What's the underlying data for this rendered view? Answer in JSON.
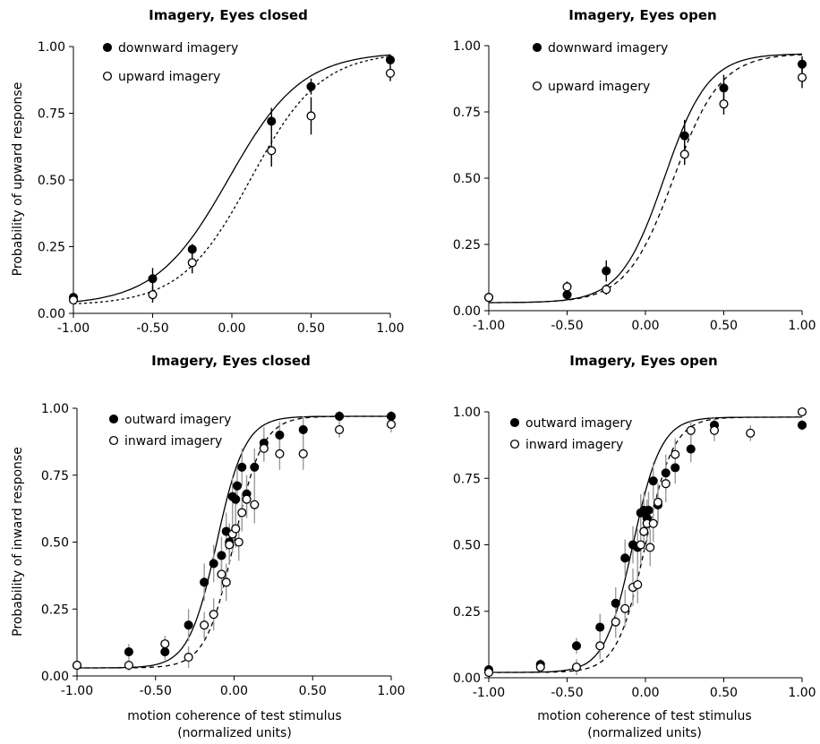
{
  "chart_data": [
    {
      "type": "scatter",
      "title": "Imagery, Eyes closed",
      "ylabel": "Probability of upward response",
      "xlabel": "",
      "xlim": [
        -1,
        1
      ],
      "ylim": [
        0,
        1
      ],
      "xticks": [
        "-1.00",
        "-0.50",
        "0.00",
        "0.50",
        "1.00"
      ],
      "yticks": [
        "0.00",
        "0.25",
        "0.50",
        "0.75",
        "1.00"
      ],
      "legend_position": "top-left",
      "series": [
        {
          "name": "downward imagery",
          "marker": "filled",
          "line": "solid",
          "fit": {
            "mu": -0.02,
            "s": 0.23,
            "lo": 0.03,
            "hi": 0.98
          },
          "points": [
            {
              "x": -1.0,
              "y": 0.06,
              "err": 0.0
            },
            {
              "x": -0.5,
              "y": 0.13,
              "err": 0.04
            },
            {
              "x": -0.25,
              "y": 0.24,
              "err": 0.02
            },
            {
              "x": 0.25,
              "y": 0.72,
              "err": 0.05
            },
            {
              "x": 0.5,
              "y": 0.85,
              "err": 0.03
            },
            {
              "x": 1.0,
              "y": 0.95,
              "err": 0.02
            }
          ]
        },
        {
          "name": "upward imagery",
          "marker": "open",
          "line": "dotted",
          "fit": {
            "mu": 0.12,
            "s": 0.22,
            "lo": 0.03,
            "hi": 0.98
          },
          "points": [
            {
              "x": -1.0,
              "y": 0.05,
              "err": 0.0
            },
            {
              "x": -0.5,
              "y": 0.07,
              "err": 0.03
            },
            {
              "x": -0.25,
              "y": 0.19,
              "err": 0.04
            },
            {
              "x": 0.25,
              "y": 0.61,
              "err": 0.06
            },
            {
              "x": 0.5,
              "y": 0.74,
              "err": 0.07
            },
            {
              "x": 1.0,
              "y": 0.9,
              "err": 0.03
            }
          ]
        }
      ]
    },
    {
      "type": "scatter",
      "title": "Imagery, Eyes open",
      "ylabel": "",
      "xlabel": "",
      "xlim": [
        -1,
        1
      ],
      "ylim": [
        0,
        1
      ],
      "xticks": [
        "-1.00",
        "-0.50",
        "0.00",
        "0.50",
        "1.00"
      ],
      "yticks": [
        "0.00",
        "0.25",
        "0.50",
        "0.75",
        "1.00"
      ],
      "legend_position": "top-left",
      "series": [
        {
          "name": "downward imagery",
          "marker": "filled",
          "line": "solid",
          "fit": {
            "mu": 0.12,
            "s": 0.14,
            "lo": 0.03,
            "hi": 0.97
          },
          "points": [
            {
              "x": -1.0,
              "y": 0.05,
              "err": 0.0
            },
            {
              "x": -0.5,
              "y": 0.06,
              "err": 0.02
            },
            {
              "x": -0.25,
              "y": 0.15,
              "err": 0.04
            },
            {
              "x": 0.25,
              "y": 0.66,
              "err": 0.06
            },
            {
              "x": 0.5,
              "y": 0.84,
              "err": 0.05
            },
            {
              "x": 1.0,
              "y": 0.93,
              "err": 0.03
            }
          ]
        },
        {
          "name": "upward imagery",
          "marker": "open",
          "line": "dashed",
          "fit": {
            "mu": 0.18,
            "s": 0.15,
            "lo": 0.03,
            "hi": 0.97
          },
          "points": [
            {
              "x": -1.0,
              "y": 0.05,
              "err": 0.0
            },
            {
              "x": -0.5,
              "y": 0.09,
              "err": 0.02
            },
            {
              "x": -0.25,
              "y": 0.08,
              "err": 0.02
            },
            {
              "x": 0.25,
              "y": 0.59,
              "err": 0.04
            },
            {
              "x": 0.5,
              "y": 0.78,
              "err": 0.04
            },
            {
              "x": 1.0,
              "y": 0.88,
              "err": 0.04
            }
          ]
        }
      ]
    },
    {
      "type": "scatter",
      "title": "Imagery, Eyes closed",
      "ylabel": "Probability of inward response",
      "xlabel": "motion coherence of test stimulus",
      "xlabel2": "(normalized units)",
      "xlim": [
        -1,
        1
      ],
      "ylim": [
        0,
        1
      ],
      "xticks": [
        "-1.00",
        "-0.50",
        "0.00",
        "0.50",
        "1.00"
      ],
      "yticks": [
        "0.00",
        "0.25",
        "0.50",
        "0.75",
        "1.00"
      ],
      "legend_position": "top-left",
      "series": [
        {
          "name": "outward imagery",
          "marker": "filled",
          "line": "solid",
          "fit": {
            "mu": -0.11,
            "s": 0.09,
            "lo": 0.03,
            "hi": 0.97
          },
          "points": [
            {
              "x": -1.0,
              "y": 0.04,
              "err": 0.0
            },
            {
              "x": -0.67,
              "y": 0.09,
              "err": 0.03
            },
            {
              "x": -0.44,
              "y": 0.09,
              "err": 0.03
            },
            {
              "x": -0.29,
              "y": 0.19,
              "err": 0.06
            },
            {
              "x": -0.19,
              "y": 0.35,
              "err": 0.07
            },
            {
              "x": -0.13,
              "y": 0.42,
              "err": 0.07
            },
            {
              "x": -0.08,
              "y": 0.45,
              "err": 0.07
            },
            {
              "x": -0.05,
              "y": 0.54,
              "err": 0.07
            },
            {
              "x": -0.03,
              "y": 0.5,
              "err": 0.07
            },
            {
              "x": -0.01,
              "y": 0.67,
              "err": 0.07
            },
            {
              "x": 0.01,
              "y": 0.66,
              "err": 0.07
            },
            {
              "x": 0.02,
              "y": 0.71,
              "err": 0.07
            },
            {
              "x": 0.05,
              "y": 0.78,
              "err": 0.07
            },
            {
              "x": 0.08,
              "y": 0.68,
              "err": 0.07
            },
            {
              "x": 0.13,
              "y": 0.78,
              "err": 0.07
            },
            {
              "x": 0.19,
              "y": 0.87,
              "err": 0.06
            },
            {
              "x": 0.29,
              "y": 0.9,
              "err": 0.05
            },
            {
              "x": 0.44,
              "y": 0.92,
              "err": 0.05
            },
            {
              "x": 0.67,
              "y": 0.97,
              "err": 0.02
            },
            {
              "x": 1.0,
              "y": 0.97,
              "err": 0.02
            }
          ]
        },
        {
          "name": "inward imagery",
          "marker": "open",
          "line": "dashed",
          "fit": {
            "mu": 0.0,
            "s": 0.09,
            "lo": 0.03,
            "hi": 0.97
          },
          "points": [
            {
              "x": -1.0,
              "y": 0.04,
              "err": 0.0
            },
            {
              "x": -0.67,
              "y": 0.04,
              "err": 0.02
            },
            {
              "x": -0.44,
              "y": 0.12,
              "err": 0.03
            },
            {
              "x": -0.29,
              "y": 0.07,
              "err": 0.04
            },
            {
              "x": -0.19,
              "y": 0.19,
              "err": 0.05
            },
            {
              "x": -0.13,
              "y": 0.23,
              "err": 0.06
            },
            {
              "x": -0.08,
              "y": 0.38,
              "err": 0.07
            },
            {
              "x": -0.05,
              "y": 0.35,
              "err": 0.07
            },
            {
              "x": -0.03,
              "y": 0.49,
              "err": 0.07
            },
            {
              "x": -0.01,
              "y": 0.53,
              "err": 0.07
            },
            {
              "x": 0.01,
              "y": 0.55,
              "err": 0.07
            },
            {
              "x": 0.03,
              "y": 0.5,
              "err": 0.07
            },
            {
              "x": 0.05,
              "y": 0.61,
              "err": 0.07
            },
            {
              "x": 0.08,
              "y": 0.66,
              "err": 0.07
            },
            {
              "x": 0.13,
              "y": 0.64,
              "err": 0.07
            },
            {
              "x": 0.19,
              "y": 0.85,
              "err": 0.05
            },
            {
              "x": 0.29,
              "y": 0.83,
              "err": 0.06
            },
            {
              "x": 0.44,
              "y": 0.83,
              "err": 0.06
            },
            {
              "x": 0.67,
              "y": 0.92,
              "err": 0.03
            },
            {
              "x": 1.0,
              "y": 0.94,
              "err": 0.03
            }
          ]
        }
      ]
    },
    {
      "type": "scatter",
      "title": "Imagery, Eyes open",
      "ylabel": "",
      "xlabel": "motion coherence of test stimulus",
      "xlabel2": "(normalized units)",
      "xlim": [
        -1,
        1
      ],
      "ylim": [
        0,
        1
      ],
      "xticks": [
        "-1.00",
        "-0.50",
        "0.00",
        "0.50",
        "1.00"
      ],
      "yticks": [
        "0.00",
        "0.25",
        "0.50",
        "0.75",
        "1.00"
      ],
      "legend_position": "top-left",
      "series": [
        {
          "name": "outward imagery",
          "marker": "filled",
          "line": "solid",
          "fit": {
            "mu": -0.08,
            "s": 0.09,
            "lo": 0.02,
            "hi": 0.98
          },
          "points": [
            {
              "x": -1.0,
              "y": 0.03,
              "err": 0.0
            },
            {
              "x": -0.67,
              "y": 0.05,
              "err": 0.02
            },
            {
              "x": -0.44,
              "y": 0.12,
              "err": 0.03
            },
            {
              "x": -0.29,
              "y": 0.19,
              "err": 0.05
            },
            {
              "x": -0.19,
              "y": 0.28,
              "err": 0.06
            },
            {
              "x": -0.13,
              "y": 0.45,
              "err": 0.07
            },
            {
              "x": -0.08,
              "y": 0.5,
              "err": 0.07
            },
            {
              "x": -0.05,
              "y": 0.49,
              "err": 0.07
            },
            {
              "x": -0.03,
              "y": 0.62,
              "err": 0.07
            },
            {
              "x": -0.01,
              "y": 0.63,
              "err": 0.07
            },
            {
              "x": 0.01,
              "y": 0.6,
              "err": 0.07
            },
            {
              "x": 0.02,
              "y": 0.63,
              "err": 0.07
            },
            {
              "x": 0.05,
              "y": 0.74,
              "err": 0.07
            },
            {
              "x": 0.08,
              "y": 0.65,
              "err": 0.07
            },
            {
              "x": 0.13,
              "y": 0.77,
              "err": 0.07
            },
            {
              "x": 0.19,
              "y": 0.79,
              "err": 0.06
            },
            {
              "x": 0.29,
              "y": 0.86,
              "err": 0.05
            },
            {
              "x": 0.44,
              "y": 0.95,
              "err": 0.03
            },
            {
              "x": 1.0,
              "y": 0.95,
              "err": 0.02
            }
          ]
        },
        {
          "name": "inward imagery",
          "marker": "open",
          "line": "dashed",
          "fit": {
            "mu": 0.0,
            "s": 0.09,
            "lo": 0.02,
            "hi": 0.98
          },
          "points": [
            {
              "x": -1.0,
              "y": 0.02,
              "err": 0.0
            },
            {
              "x": -0.67,
              "y": 0.04,
              "err": 0.02
            },
            {
              "x": -0.44,
              "y": 0.04,
              "err": 0.03
            },
            {
              "x": -0.29,
              "y": 0.12,
              "err": 0.05
            },
            {
              "x": -0.19,
              "y": 0.21,
              "err": 0.06
            },
            {
              "x": -0.13,
              "y": 0.26,
              "err": 0.07
            },
            {
              "x": -0.08,
              "y": 0.34,
              "err": 0.07
            },
            {
              "x": -0.05,
              "y": 0.35,
              "err": 0.07
            },
            {
              "x": -0.03,
              "y": 0.5,
              "err": 0.07
            },
            {
              "x": -0.01,
              "y": 0.55,
              "err": 0.07
            },
            {
              "x": 0.01,
              "y": 0.58,
              "err": 0.07
            },
            {
              "x": 0.03,
              "y": 0.49,
              "err": 0.07
            },
            {
              "x": 0.05,
              "y": 0.58,
              "err": 0.07
            },
            {
              "x": 0.08,
              "y": 0.66,
              "err": 0.07
            },
            {
              "x": 0.13,
              "y": 0.73,
              "err": 0.07
            },
            {
              "x": 0.19,
              "y": 0.84,
              "err": 0.06
            },
            {
              "x": 0.29,
              "y": 0.93,
              "err": 0.04
            },
            {
              "x": 0.44,
              "y": 0.93,
              "err": 0.04
            },
            {
              "x": 0.67,
              "y": 0.92,
              "err": 0.03
            },
            {
              "x": 1.0,
              "y": 1.0,
              "err": 0.0
            }
          ]
        }
      ]
    }
  ]
}
